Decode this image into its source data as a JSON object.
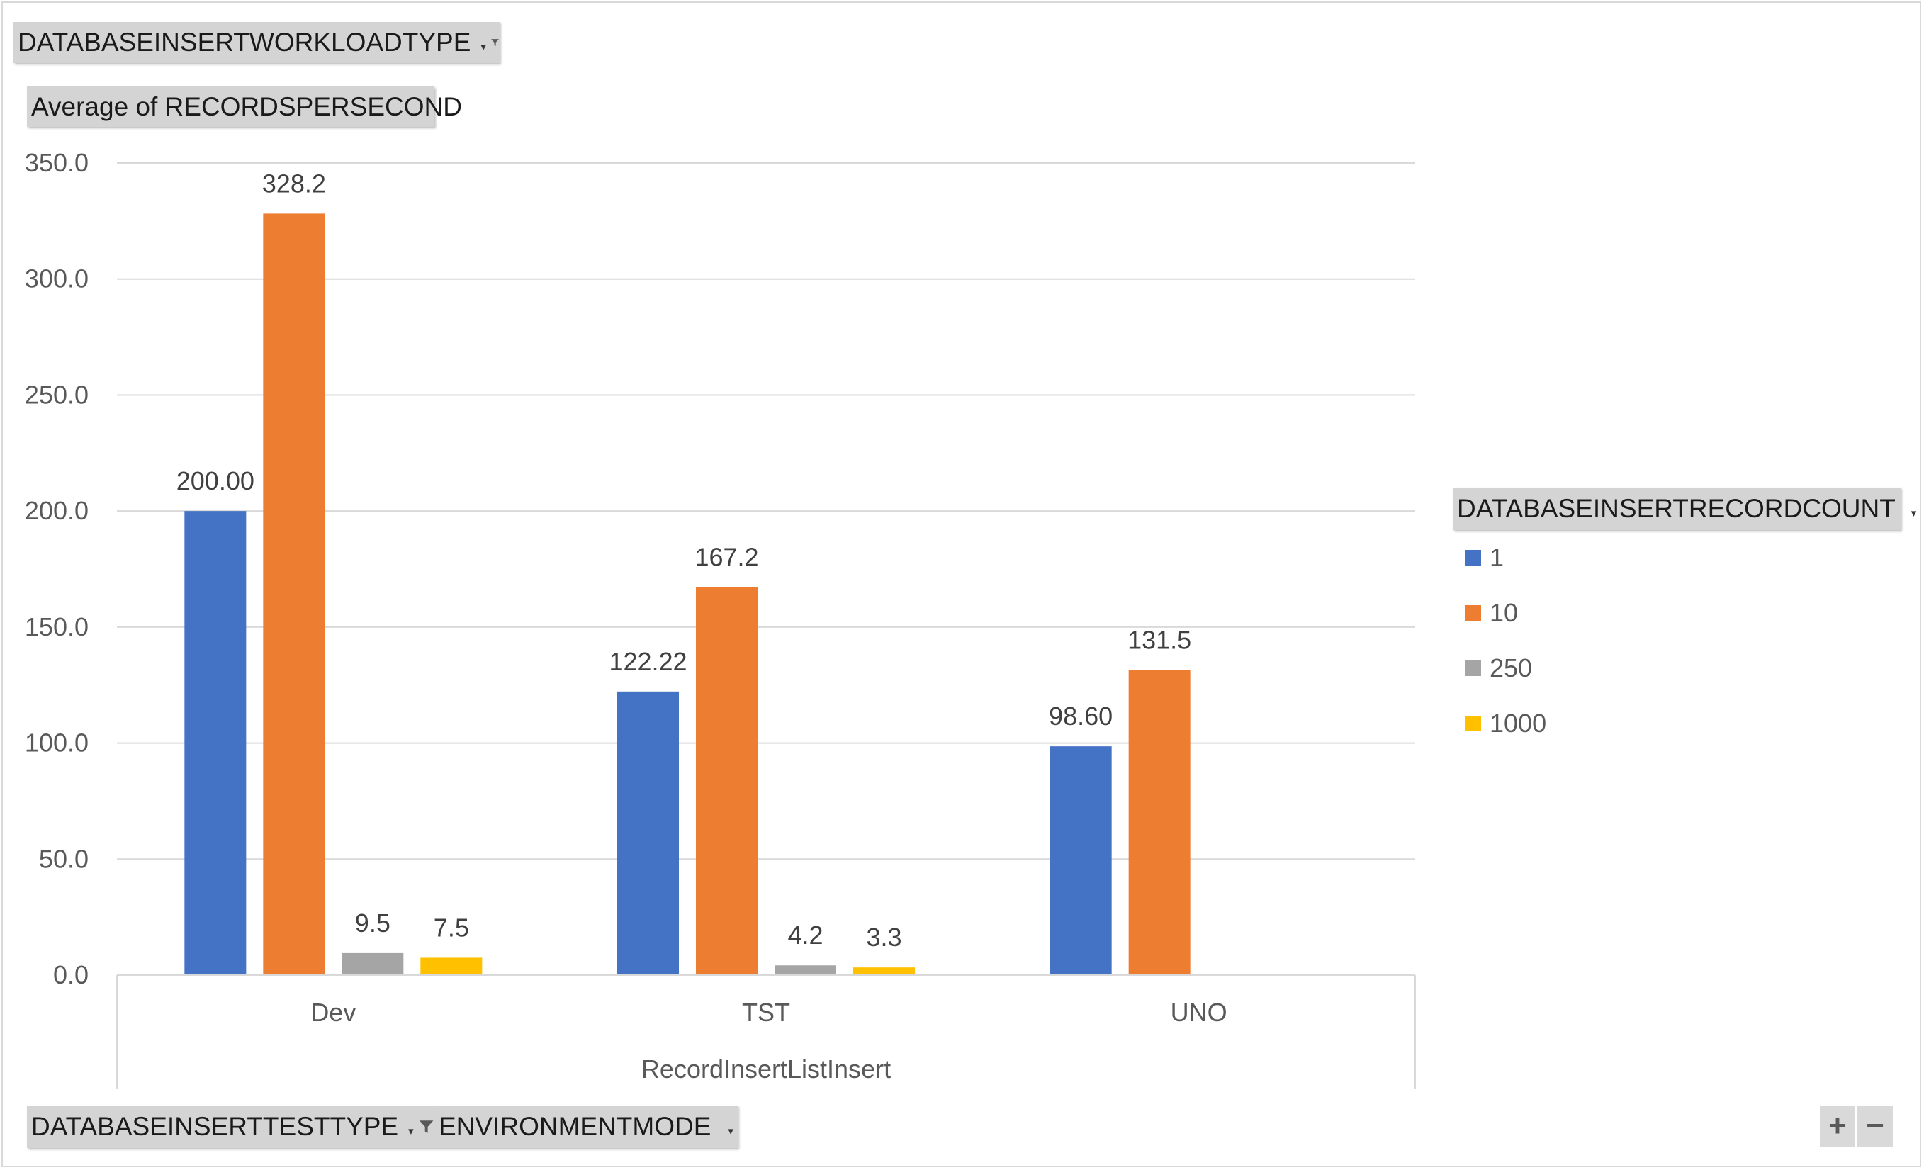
{
  "pivot_fields": {
    "filter_field": "DATABASEINSERTWORKLOADTYPE",
    "value_field": "Average of RECORDSPERSECOND",
    "legend_field": "DATABASEINSERTRECORDCOUNT",
    "axis_field_1": "DATABASEINSERTTESTTYPE",
    "axis_field_2": "ENVIRONMENTMODE"
  },
  "zoom_controls": {
    "plus": "+",
    "minus": "−"
  },
  "colors": {
    "1": "#4472C4",
    "10": "#ED7D31",
    "250": "#A5A5A5",
    "1000": "#FFC000"
  },
  "chart_data": {
    "type": "bar",
    "group_label": "RecordInsertListInsert",
    "categories": [
      "Dev",
      "TST",
      "UNO"
    ],
    "series": [
      {
        "name": "1",
        "values": [
          200.0,
          122.22,
          98.6
        ],
        "labels": [
          "200.00",
          "122.22",
          "98.60"
        ]
      },
      {
        "name": "10",
        "values": [
          328.2,
          167.2,
          131.5
        ],
        "labels": [
          "328.2",
          "167.2",
          "131.5"
        ]
      },
      {
        "name": "250",
        "values": [
          9.5,
          4.2,
          null
        ],
        "labels": [
          "9.5",
          "4.2",
          ""
        ]
      },
      {
        "name": "1000",
        "values": [
          7.5,
          3.3,
          null
        ],
        "labels": [
          "7.5",
          "3.3",
          ""
        ]
      }
    ],
    "ylim": [
      0,
      350
    ],
    "yticks": [
      "0.0",
      "50.0",
      "100.0",
      "150.0",
      "200.0",
      "250.0",
      "300.0",
      "350.0"
    ],
    "grid": true,
    "legend_position": "right"
  }
}
